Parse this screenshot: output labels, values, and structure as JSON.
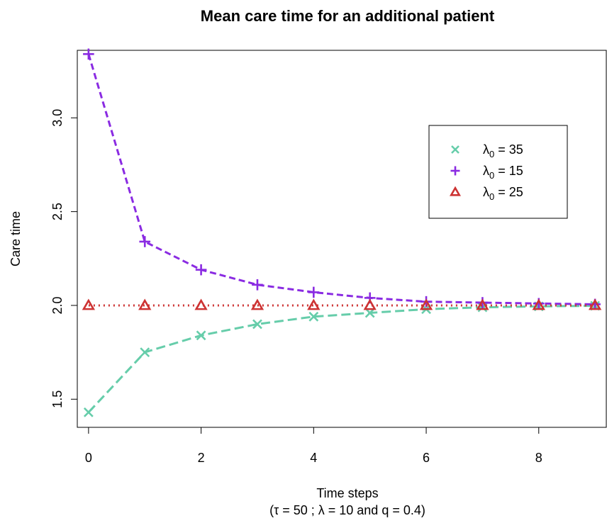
{
  "chart_data": {
    "type": "line",
    "title": "Mean care time for an additional patient",
    "xlabel": "Time steps",
    "xlabel_sub": "(τ = 50 ; λ = 10 and q = 0.4)",
    "ylabel": "Care time",
    "xlim": [
      -0.2,
      9.2
    ],
    "ylim": [
      1.35,
      3.36
    ],
    "xticks": [
      "0",
      "2",
      "4",
      "6",
      "8"
    ],
    "yticks": [
      "1.5",
      "2.0",
      "2.5",
      "3.0"
    ],
    "legend_position": "top-right",
    "x": [
      0,
      1,
      2,
      3,
      4,
      5,
      6,
      7,
      8,
      9
    ],
    "series": [
      {
        "name": "λ0 = 35",
        "name_symbol": "λ",
        "name_sub": "0",
        "name_rest": " = 35",
        "color": "#66CDAA",
        "marker": "x",
        "dash": "long",
        "values": [
          1.43,
          1.75,
          1.84,
          1.9,
          1.94,
          1.96,
          1.98,
          1.99,
          1.995,
          1.998
        ]
      },
      {
        "name": "λ0 = 15",
        "name_symbol": "λ",
        "name_sub": "0",
        "name_rest": " = 15",
        "color": "#8A2BE2",
        "marker": "plus",
        "dash": "short",
        "values": [
          3.34,
          2.34,
          2.19,
          2.11,
          2.07,
          2.04,
          2.02,
          2.015,
          2.01,
          2.006
        ]
      },
      {
        "name": "λ0 = 25",
        "name_symbol": "λ",
        "name_sub": "0",
        "name_rest": " = 25",
        "color": "#CD3333",
        "marker": "triangle",
        "dash": "dotted",
        "values": [
          2.0,
          2.0,
          2.0,
          2.0,
          2.0,
          2.0,
          2.0,
          2.0,
          2.0,
          2.0
        ]
      }
    ]
  }
}
